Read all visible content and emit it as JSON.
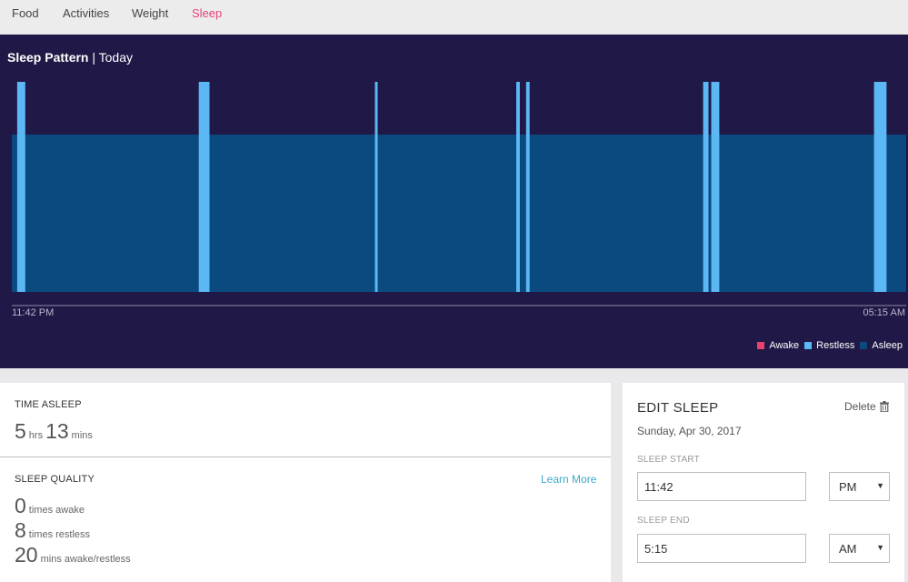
{
  "nav": {
    "tabs": [
      {
        "label": "Food"
      },
      {
        "label": "Activities"
      },
      {
        "label": "Weight"
      },
      {
        "label": "Sleep"
      }
    ],
    "active": "Sleep"
  },
  "pattern": {
    "title": "Sleep Pattern",
    "subtitle": "| Today",
    "start_time": "11:42 PM",
    "end_time": "05:15 AM",
    "legend": [
      {
        "label": "Awake",
        "color": "#e8436f"
      },
      {
        "label": "Restless",
        "color": "#5bb8f5"
      },
      {
        "label": "Asleep",
        "color": "#0a4a7f"
      }
    ]
  },
  "chart_data": {
    "type": "timeline",
    "x_range": [
      "11:42 PM",
      "05:15 AM"
    ],
    "states": [
      "Awake",
      "Restless",
      "Asleep"
    ],
    "segments": [
      {
        "state": "Asleep",
        "start": 0.0,
        "end": 1.0
      },
      {
        "state": "Restless",
        "start": 0.006,
        "end": 0.015
      },
      {
        "state": "Restless",
        "start": 0.209,
        "end": 0.221
      },
      {
        "state": "Restless",
        "start": 0.406,
        "end": 0.409
      },
      {
        "state": "Restless",
        "start": 0.564,
        "end": 0.568
      },
      {
        "state": "Restless",
        "start": 0.575,
        "end": 0.579
      },
      {
        "state": "Restless",
        "start": 0.773,
        "end": 0.779
      },
      {
        "state": "Restless",
        "start": 0.782,
        "end": 0.791
      },
      {
        "state": "Restless",
        "start": 0.964,
        "end": 0.978
      }
    ]
  },
  "summary": {
    "time_asleep_label": "TIME ASLEEP",
    "hours": "5",
    "hours_unit": "hrs",
    "mins": "13",
    "mins_unit": "mins",
    "quality_label": "SLEEP QUALITY",
    "learn_more": "Learn More",
    "times_awake": "0",
    "times_awake_label": "times awake",
    "times_restless": "8",
    "times_restless_label": "times restless",
    "mins_awake_restless": "20",
    "mins_awake_restless_label": "mins awake/restless"
  },
  "edit": {
    "title": "EDIT SLEEP",
    "delete_label": "Delete",
    "date": "Sunday, Apr 30, 2017",
    "start_label": "SLEEP START",
    "start_time": "11:42",
    "start_ampm": "PM",
    "end_label": "SLEEP END",
    "end_time": "5:15",
    "end_ampm": "AM"
  }
}
